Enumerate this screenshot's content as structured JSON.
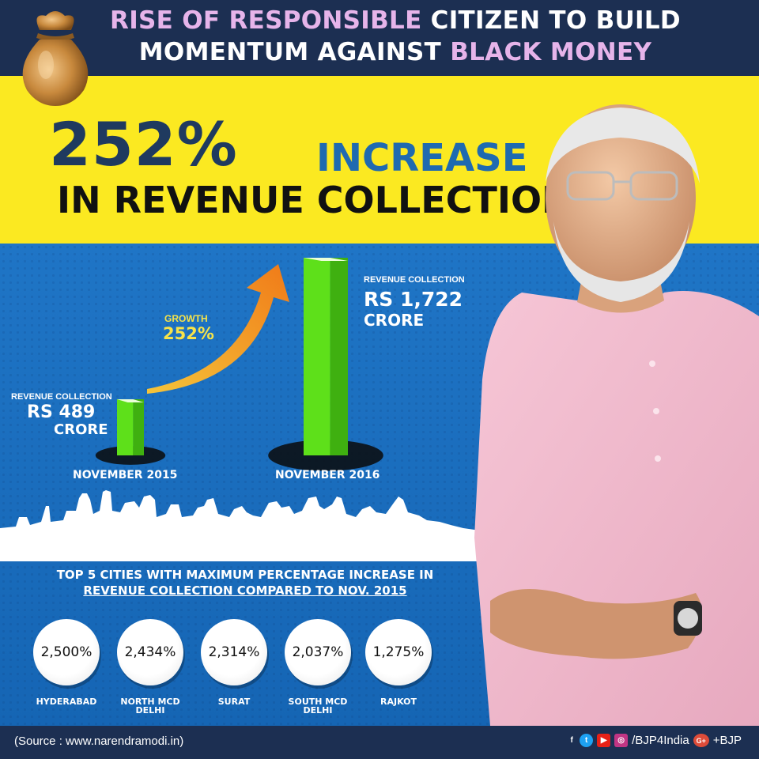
{
  "header": {
    "title_l1_a": "RISE OF RESPONSIBLE",
    "title_l1_b": " CITIZEN TO BUILD",
    "title_l2_a": "MOMENTUM AGAINST ",
    "title_l2_b": "BLACK MONEY"
  },
  "headline": {
    "percent": "252%",
    "increase": "INCREASE",
    "subtitle": "IN REVENUE COLLECTION"
  },
  "chart_data": {
    "type": "bar",
    "categories": [
      "NOVEMBER 2015",
      "NOVEMBER 2016"
    ],
    "values": [
      489,
      1722
    ],
    "unit": "RS CRORE",
    "growth_label": "GROWTH",
    "growth_value": "252%",
    "bars": [
      {
        "caption": "REVENUE COLLECTION",
        "value": "RS 489",
        "unit": "CRORE",
        "month": "NOVEMBER 2015"
      },
      {
        "caption": "REVENUE COLLECTION",
        "value": "RS 1,722",
        "unit": "CRORE",
        "month": "NOVEMBER 2016"
      }
    ]
  },
  "cities": {
    "heading_1": "TOP 5 CITIES WITH MAXIMUM PERCENTAGE INCREASE IN",
    "heading_2": "REVENUE COLLECTION COMPARED TO NOV. 2015",
    "items": [
      {
        "value": "2,500%",
        "name": "HYDERABAD"
      },
      {
        "value": "2,434%",
        "name": "NORTH MCD DELHI"
      },
      {
        "value": "2,314%",
        "name": "SURAT"
      },
      {
        "value": "2,037%",
        "name": "SOUTH MCD DELHI"
      },
      {
        "value": "1,275%",
        "name": "RAJKOT"
      }
    ]
  },
  "footer": {
    "source": "(Source : www.narendramodi.in)",
    "handle": "/BJP4India",
    "gplus": "+BJP"
  },
  "colors": {
    "header_bg": "#1c2f52",
    "yellow": "#fbe921",
    "blue": "#1f75c6",
    "bar_green": "#5ee01a",
    "highlight_pink": "#e6b4ea",
    "growth_yellow": "#f6e34a"
  }
}
